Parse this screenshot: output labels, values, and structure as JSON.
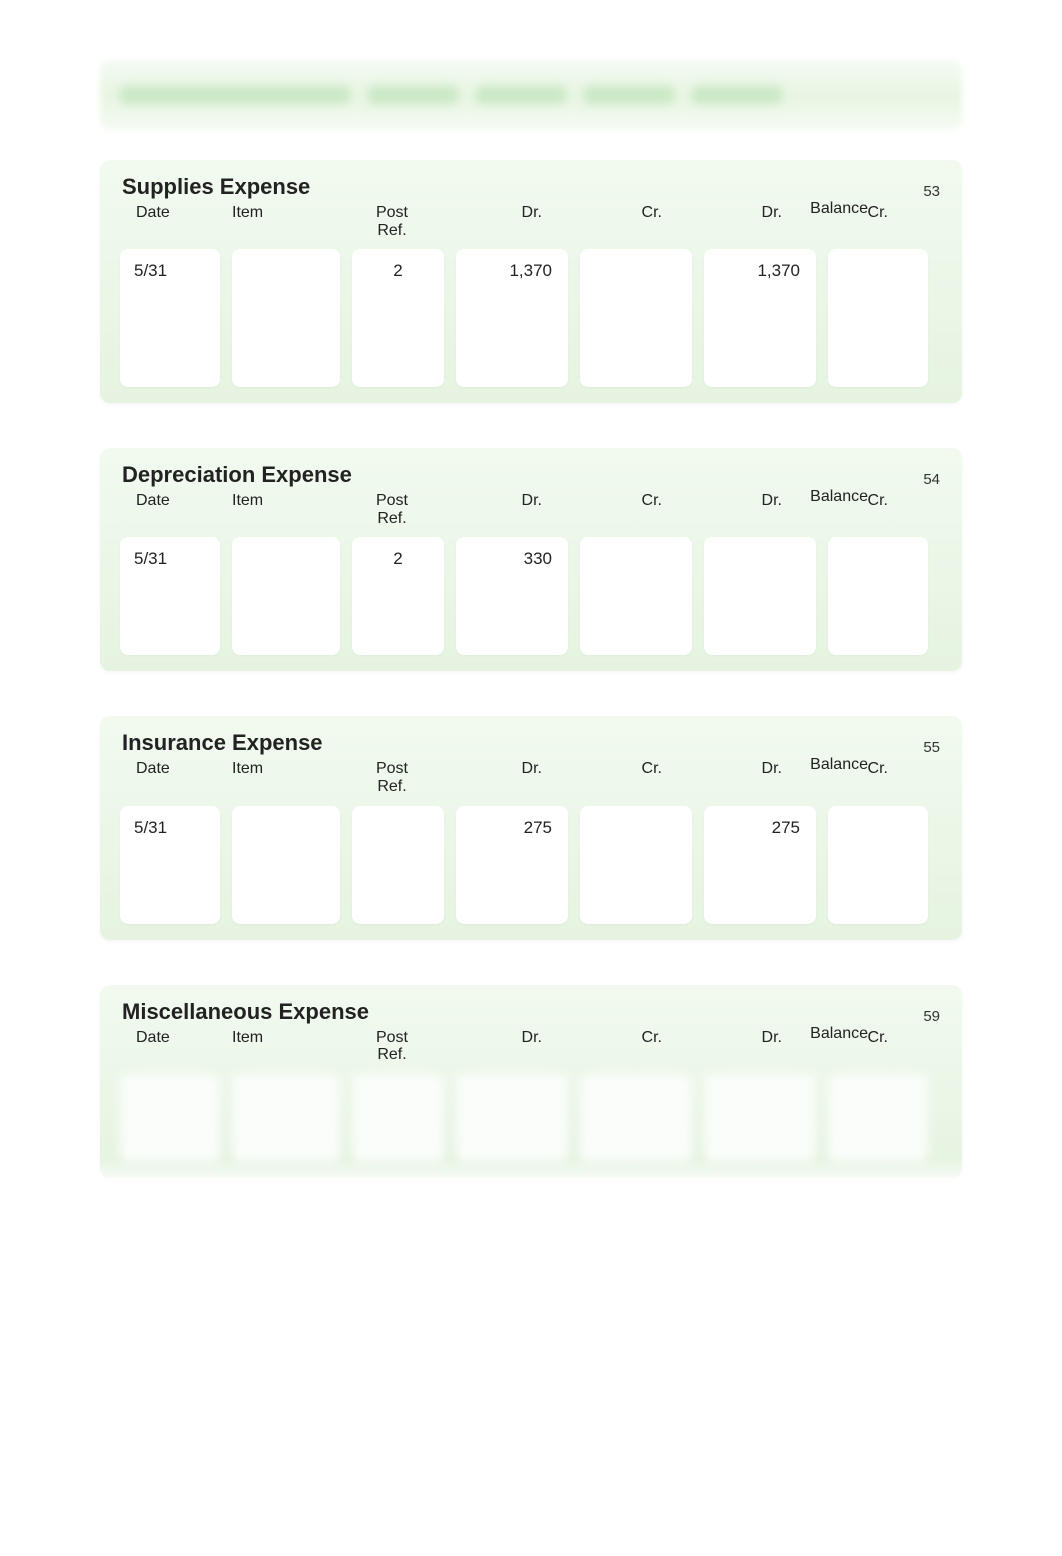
{
  "colors": {
    "card_bg_top": "#f2faf0",
    "card_bg_bottom": "#e5f3e0",
    "cell_bg": "#ffffff",
    "text": "#222222"
  },
  "column_headers": {
    "date": "Date",
    "item": "Item",
    "post_ref_line1": "Post",
    "post_ref_line2": "Ref.",
    "dr": "Dr.",
    "cr": "Cr.",
    "balance_label": "Balance",
    "balance_dr": "Dr.",
    "balance_cr": "Cr."
  },
  "ledgers": [
    {
      "title": "Supplies Expense",
      "number": "53",
      "rows": [
        {
          "date": "5/31",
          "item": "",
          "post_ref": "2",
          "dr": "1,370",
          "cr": "",
          "bal_dr": "1,370",
          "bal_cr": ""
        }
      ],
      "body_min_height": 150,
      "blurred": false
    },
    {
      "title": "Depreciation Expense",
      "number": "54",
      "rows": [
        {
          "date": "5/31",
          "item": "",
          "post_ref": "2",
          "dr": "330",
          "cr": "",
          "bal_dr": "",
          "bal_cr": ""
        }
      ],
      "body_min_height": 130,
      "blurred": false
    },
    {
      "title": "Insurance Expense",
      "number": "55",
      "rows": [
        {
          "date": "5/31",
          "item": "",
          "post_ref": "",
          "dr": "275",
          "cr": "",
          "bal_dr": "275",
          "bal_cr": ""
        }
      ],
      "body_min_height": 130,
      "blurred": false
    },
    {
      "title": "Miscellaneous Expense",
      "number": "59",
      "rows": [
        {
          "date": "",
          "item": "",
          "post_ref": "",
          "dr": "",
          "cr": "",
          "bal_dr": "",
          "bal_cr": ""
        }
      ],
      "body_min_height": 100,
      "blurred": true
    }
  ],
  "top_blur_bars": [
    230,
    90,
    90,
    90,
    90
  ]
}
